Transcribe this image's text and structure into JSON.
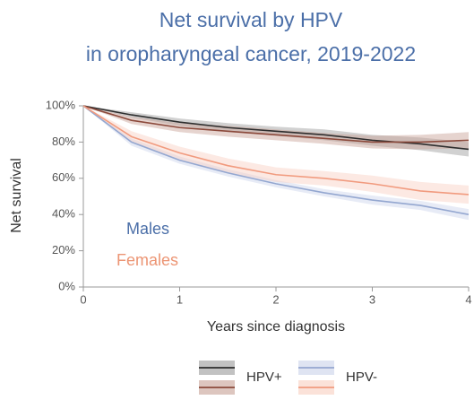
{
  "chart_data": {
    "type": "line",
    "title": [
      "Net survival by HPV",
      "in oropharyngeal cancer, 2019-2022"
    ],
    "x_label": "Years since diagnosis",
    "y_label": "Net survival",
    "x": [
      0,
      0.5,
      1,
      1.5,
      2,
      2.5,
      3,
      3.5,
      4
    ],
    "xlim": [
      0,
      4
    ],
    "xticks": [
      0,
      1,
      2,
      3,
      4
    ],
    "ylim": [
      0,
      100
    ],
    "yticks": [
      {
        "value": 0,
        "label": "0%"
      },
      {
        "value": 20,
        "label": "20%"
      },
      {
        "value": 40,
        "label": "40%"
      },
      {
        "value": 60,
        "label": "60%"
      },
      {
        "value": 80,
        "label": "80%"
      },
      {
        "value": 100,
        "label": "100%"
      }
    ],
    "groups": [
      {
        "name": "HPV+",
        "series": [
          {
            "color": "#2e2e2e",
            "band_color": "#9a9a9a",
            "values": [
              100,
              95,
              91,
              88,
              86,
              84,
              81,
              79,
              76
            ],
            "upper": [
              100,
              96.5,
              93,
              90.5,
              88.5,
              87,
              84,
              82.5,
              80
            ],
            "lower": [
              100,
              93.5,
              89,
              85.5,
              83.5,
              81,
              78,
              75.5,
              72
            ]
          },
          {
            "color": "#8c4a3c",
            "band_color": "#c7a095",
            "values": [
              100,
              92,
              88,
              86,
              84,
              82,
              80,
              80,
              81
            ],
            "upper": [
              100,
              94,
              90.5,
              89,
              87,
              85,
              83.5,
              84,
              85.5
            ],
            "lower": [
              100,
              90,
              85.5,
              83,
              81,
              79,
              76.5,
              76,
              76.5
            ]
          }
        ]
      },
      {
        "name": "HPV-",
        "series": [
          {
            "color": "#94a7d0",
            "band_color": "#c9d2ea",
            "values": [
              100,
              80,
              70,
              63,
              57,
              52,
              48,
              45,
              40
            ],
            "upper": [
              100,
              82,
              72,
              65,
              59,
              54,
              50.5,
              47.5,
              43
            ],
            "lower": [
              100,
              78,
              68,
              61,
              55,
              50,
              45.5,
              42.5,
              37
            ]
          },
          {
            "color": "#f19b7f",
            "band_color": "#f8cfc0",
            "values": [
              100,
              83,
              74,
              67,
              62,
              60,
              57,
              53,
              51
            ],
            "upper": [
              100,
              86,
              77.5,
              71,
              66,
              64,
              61.5,
              58,
              56
            ],
            "lower": [
              100,
              80,
              70.5,
              63,
              58,
              56,
              52.5,
              48,
              46
            ]
          }
        ]
      }
    ],
    "annotations": [
      {
        "text": "Males",
        "color": "#4b6fa8"
      },
      {
        "text": "Females",
        "color": "#ec9574"
      }
    ]
  }
}
